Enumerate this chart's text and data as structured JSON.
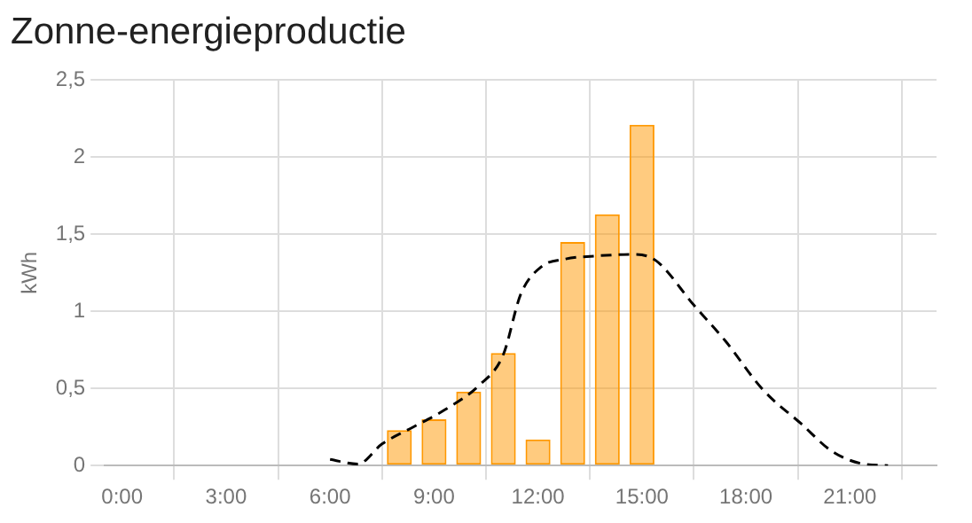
{
  "chart_data": {
    "type": "bar",
    "title": "Zonne-energieproductie",
    "ylabel": "kWh",
    "x": [
      8,
      9,
      10,
      11,
      12,
      13,
      14,
      15
    ],
    "series": [
      {
        "color": "#ff9800",
        "values": [
          0.23,
          0.3,
          0.48,
          0.73,
          0.17,
          1.45,
          1.63,
          2.21
        ]
      },
      {
        "type": "line",
        "color": "#000000",
        "line_style": "dashed",
        "marker": "none",
        "x": [
          6.0,
          6.8,
          7.5,
          8.4,
          9.3,
          10.3,
          11.0,
          11.5,
          12.1,
          12.8,
          13.7,
          14.8,
          15.4,
          16.5,
          17.4,
          18.5,
          19.6,
          20.5,
          21.4,
          22.1
        ],
        "values": [
          0.04,
          0.01,
          0.14,
          0.25,
          0.36,
          0.52,
          0.72,
          1.11,
          1.29,
          1.34,
          1.36,
          1.37,
          1.33,
          1.04,
          0.81,
          0.49,
          0.27,
          0.09,
          0.01,
          0
        ]
      }
    ],
    "xlim": [
      -0.5,
      23.5
    ],
    "xticks": [
      {
        "value": 0,
        "label": "0:00"
      },
      {
        "value": 3,
        "label": "3:00"
      },
      {
        "value": 6,
        "label": "6:00"
      },
      {
        "value": 9,
        "label": "9:00"
      },
      {
        "value": 12,
        "label": "12:00"
      },
      {
        "value": 15,
        "label": "15:00"
      },
      {
        "value": 18,
        "label": "18:00"
      },
      {
        "value": 21,
        "label": "21:00"
      }
    ],
    "ylim": [
      0,
      2.5
    ],
    "yticks": [
      0,
      {
        "value": 0.5,
        "label": "0,5"
      },
      1,
      {
        "value": 1.5,
        "label": "1,5"
      },
      2,
      {
        "value": 2.5,
        "label": "2,5"
      }
    ],
    "grid": true,
    "legend": false
  }
}
